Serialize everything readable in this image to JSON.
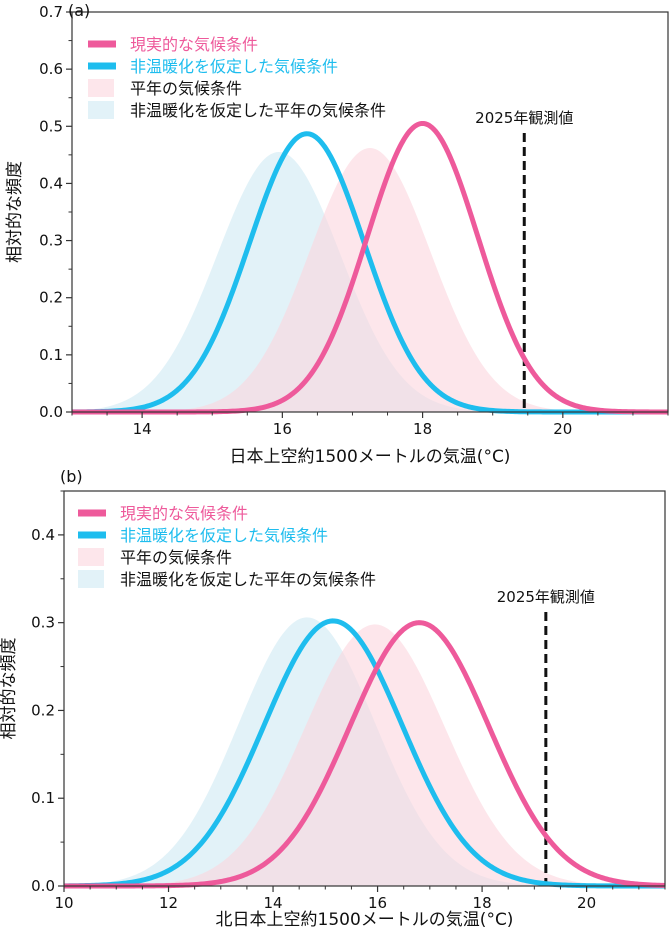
{
  "colors": {
    "actual": "#ee5a9b",
    "no_warming": "#1ebdee",
    "normal_fill": "#fbd5de",
    "no_warming_normal_fill": "#cfeaf4",
    "observed_line": "#111111"
  },
  "chart_data": [
    {
      "type": "area",
      "panel_label": "(a)",
      "xlabel": "日本上空約1500メートルの気温(°C)",
      "ylabel": "相対的な頻度",
      "xlim": [
        13,
        21.5
      ],
      "ylim": [
        0,
        0.7
      ],
      "xticks": [
        14,
        16,
        18,
        20
      ],
      "xtick_labels": [
        "14",
        "16",
        "18",
        "20"
      ],
      "yticks": [
        0.0,
        0.1,
        0.2,
        0.3,
        0.4,
        0.5,
        0.6,
        0.7
      ],
      "ytick_labels": [
        "0.0",
        "0.1",
        "0.2",
        "0.3",
        "0.4",
        "0.5",
        "0.6",
        "0.7"
      ],
      "grid": false,
      "legend_placement": "top-left",
      "series": [
        {
          "name": "現実的な気候条件",
          "kind": "line",
          "mean": 18.0,
          "peak": 0.505
        },
        {
          "name": "非温暖化を仮定した気候条件",
          "kind": "line",
          "mean": 16.35,
          "peak": 0.487
        },
        {
          "name": "平年の気候条件",
          "kind": "fill",
          "mean": 17.25,
          "peak": 0.462
        },
        {
          "name": "非温暖化を仮定した平年の気候条件",
          "kind": "fill",
          "mean": 15.95,
          "peak": 0.455
        }
      ],
      "observed": {
        "label": "2025年観測値",
        "x": 19.45
      }
    },
    {
      "type": "area",
      "panel_label": "(b)",
      "xlabel": "北日本上空約1500メートルの気温(°C)",
      "ylabel": "相対的な頻度",
      "xlim": [
        10,
        21.5
      ],
      "ylim": [
        0,
        0.45
      ],
      "xticks": [
        10,
        12,
        14,
        16,
        18,
        20
      ],
      "xtick_labels": [
        "10",
        "12",
        "14",
        "16",
        "18",
        "20"
      ],
      "yticks": [
        0.0,
        0.1,
        0.2,
        0.3,
        0.4
      ],
      "ytick_labels": [
        "0.0",
        "0.1",
        "0.2",
        "0.3",
        "0.4"
      ],
      "grid": false,
      "legend_placement": "top-left",
      "series": [
        {
          "name": "現実的な気候条件",
          "kind": "line",
          "mean": 16.8,
          "peak": 0.3
        },
        {
          "name": "非温暖化を仮定した気候条件",
          "kind": "line",
          "mean": 15.15,
          "peak": 0.302
        },
        {
          "name": "平年の気候条件",
          "kind": "fill",
          "mean": 15.95,
          "peak": 0.298
        },
        {
          "name": "非温暖化を仮定した平年の気候条件",
          "kind": "fill",
          "mean": 14.65,
          "peak": 0.306
        }
      ],
      "observed": {
        "label": "2025年観測値",
        "x": 19.22
      }
    }
  ]
}
